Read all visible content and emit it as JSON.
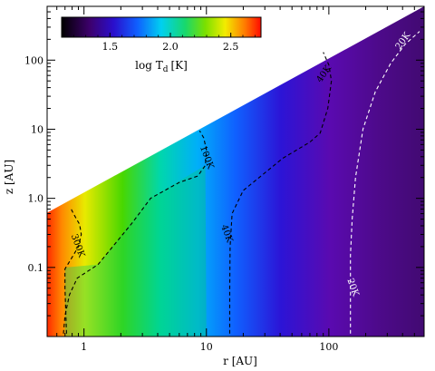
{
  "chart_data": {
    "type": "heatmap",
    "title": "",
    "xlabel": "r [AU]",
    "ylabel": "z [AU]",
    "xscale": "log",
    "yscale": "log",
    "xlim": [
      0.5,
      600
    ],
    "ylim": [
      0.01,
      600
    ],
    "x_ticks": [
      {
        "value": 1,
        "label": "1"
      },
      {
        "value": 10,
        "label": "10"
      },
      {
        "value": 100,
        "label": "100"
      }
    ],
    "y_ticks": [
      {
        "value": 0.1,
        "label": "0.1"
      },
      {
        "value": 1,
        "label": "1.0"
      },
      {
        "value": 10,
        "label": "10"
      },
      {
        "value": 100,
        "label": "100"
      }
    ],
    "disk_surface": [
      [
        0.5,
        0.62
      ],
      [
        600,
        600
      ]
    ],
    "colorbar": {
      "label": "log T",
      "label_sub": "d",
      "label_unit": "[K]",
      "range": [
        1.1,
        2.75
      ],
      "ticks": [
        {
          "value": 1.5,
          "label": "1.5"
        },
        {
          "value": 2.0,
          "label": "2.0"
        },
        {
          "value": 2.5,
          "label": "2.5"
        }
      ],
      "placement": "top-left"
    },
    "contours": [
      {
        "label": "300K",
        "color": "#000000",
        "points": [
          [
            0.72,
            0.011
          ],
          [
            0.7,
            0.05
          ],
          [
            0.7,
            0.095
          ],
          [
            0.78,
            0.13
          ],
          [
            0.9,
            0.2
          ],
          [
            0.95,
            0.3
          ],
          [
            0.92,
            0.42
          ],
          [
            0.82,
            0.6
          ],
          [
            0.78,
            0.72
          ]
        ],
        "label_at": [
          0.85,
          0.2
        ]
      },
      {
        "label": "100K",
        "color": "#000000",
        "points": [
          [
            0.68,
            0.011
          ],
          [
            0.7,
            0.02
          ],
          [
            0.76,
            0.04
          ],
          [
            0.88,
            0.07
          ],
          [
            1.3,
            0.11
          ],
          [
            2.5,
            0.45
          ],
          [
            3.5,
            1.0
          ],
          [
            6,
            1.7
          ],
          [
            8.5,
            2.1
          ],
          [
            9.8,
            3.0
          ],
          [
            10,
            5
          ],
          [
            9.5,
            7.5
          ],
          [
            8.8,
            9.5
          ]
        ],
        "label_at": [
          9.6,
          3.8
        ]
      },
      {
        "label": "40K",
        "color": "#000000",
        "points": [
          [
            15.5,
            0.011
          ],
          [
            15.5,
            0.05
          ],
          [
            15.6,
            0.2
          ],
          [
            16.2,
            0.6
          ],
          [
            20,
            1.3
          ],
          [
            42,
            3.8
          ],
          [
            70,
            6.5
          ],
          [
            85,
            8.8
          ],
          [
            98,
            20
          ],
          [
            105,
            50
          ],
          [
            100,
            85
          ],
          [
            90,
            130
          ]
        ],
        "label_at": [
          14,
          0.3
        ],
        "label_at_2": [
          95,
          60
        ]
      },
      {
        "label": "20K",
        "color": "#ffffff",
        "points": [
          [
            150,
            0.011
          ],
          [
            150,
            0.06
          ],
          [
            150,
            0.15
          ],
          [
            155,
            0.5
          ],
          [
            165,
            2
          ],
          [
            190,
            10
          ],
          [
            240,
            35
          ],
          [
            320,
            90
          ],
          [
            420,
            170
          ],
          [
            550,
            260
          ]
        ],
        "label_at": [
          150,
          0.05
        ],
        "label_at_2": [
          420,
          180
        ]
      }
    ]
  }
}
